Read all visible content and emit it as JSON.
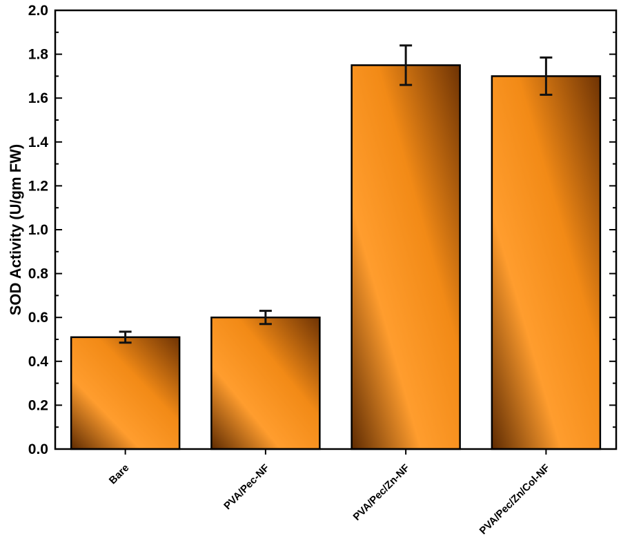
{
  "chart_data": {
    "type": "bar",
    "title": "",
    "xlabel": "",
    "ylabel": "SOD Activity (U/gm FW)",
    "categories": [
      "Bare",
      "PVA/Pec-NF",
      "PVA/Pec/Zn-NF",
      "PVA/Pec/Zn/Col-NF"
    ],
    "values": [
      0.51,
      0.6,
      1.75,
      1.7
    ],
    "errors": [
      0.025,
      0.03,
      0.09,
      0.085
    ],
    "ylim": [
      0,
      2.0
    ],
    "yticks": [
      "0.0",
      "0.2",
      "0.4",
      "0.6",
      "0.8",
      "1.0",
      "1.2",
      "1.4",
      "1.6",
      "1.8",
      "2.0"
    ],
    "grid": false,
    "legend": "none",
    "colors": {
      "bar_light": "#ff9d2e",
      "bar_mid": "#f28a16",
      "bar_dark": "#5e2b02",
      "axis": "#000000"
    }
  }
}
